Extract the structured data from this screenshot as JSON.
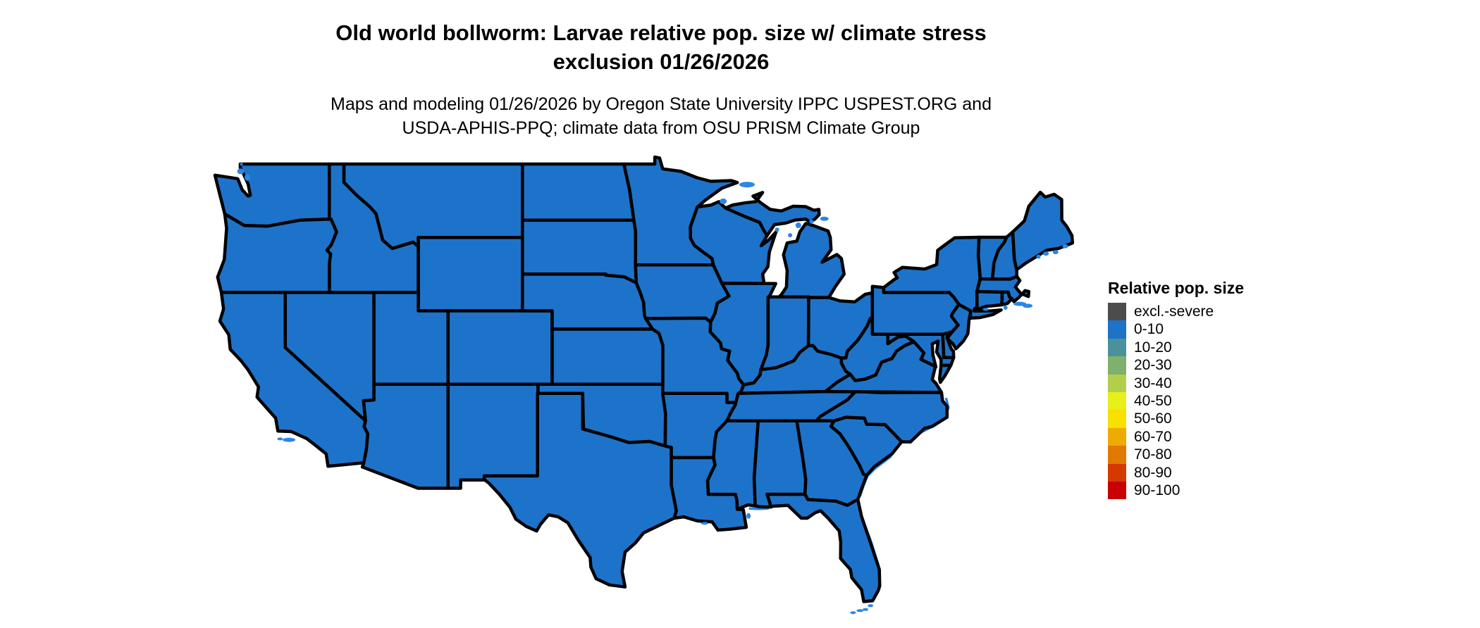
{
  "header": {
    "title_line1": "Old world bollworm: Larvae relative pop. size w/ climate stress",
    "title_line2": "exclusion 01/26/2026",
    "subtitle_line1": "Maps and modeling 01/26/2026 by Oregon State University IPPC USPEST.ORG and",
    "subtitle_line2": "USDA-APHIS-PPQ; climate data from OSU PRISM Climate Group"
  },
  "legend": {
    "title": "Relative pop. size",
    "items": [
      {
        "label": "excl.-severe",
        "color": "#4C4C4C"
      },
      {
        "label": "0-10",
        "color": "#1C73C8"
      },
      {
        "label": "10-20",
        "color": "#4B919B"
      },
      {
        "label": "20-30",
        "color": "#7FB06E"
      },
      {
        "label": "30-40",
        "color": "#B3CF4A"
      },
      {
        "label": "40-50",
        "color": "#E8EF1A"
      },
      {
        "label": "50-60",
        "color": "#F8E000"
      },
      {
        "label": "60-70",
        "color": "#EEAB04"
      },
      {
        "label": "70-80",
        "color": "#E17800"
      },
      {
        "label": "80-90",
        "color": "#D43A00"
      },
      {
        "label": "90-100",
        "color": "#C80002"
      }
    ]
  },
  "map": {
    "region": "Contiguous United States choropleth",
    "all_states_category": "0-10",
    "state_fill_color": "#1D73C9",
    "state_border_color": "#000000",
    "water_island_color": "#2B86E6",
    "background_color": "#FFFFFF"
  }
}
